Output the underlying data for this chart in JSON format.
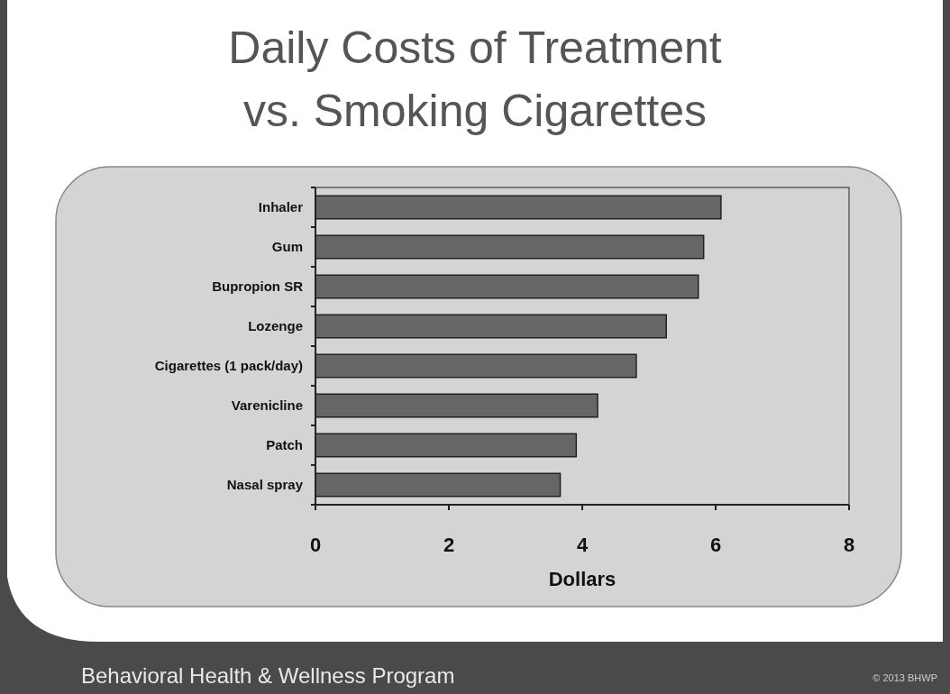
{
  "chart_data": {
    "type": "bar",
    "title": "Daily Costs of Treatment\nvs. Smoking Cigarettes",
    "orientation": "horizontal",
    "categories": [
      "Inhaler",
      "Gum",
      "Bupropion SR",
      "Lozenge",
      "Cigarettes (1 pack/day)",
      "Varenicline",
      "Patch",
      "Nasal spray"
    ],
    "values": [
      6.08,
      5.82,
      5.74,
      5.26,
      4.81,
      4.23,
      3.91,
      3.67
    ],
    "color": "#666666",
    "xlim": [
      0,
      8
    ],
    "xticks": [
      0,
      2,
      4,
      6,
      8
    ],
    "xlabel": "Dollars",
    "grid": false,
    "annotations": [
      "Behavioral Health & Wellness Program",
      "© 2013 BHWP"
    ]
  }
}
